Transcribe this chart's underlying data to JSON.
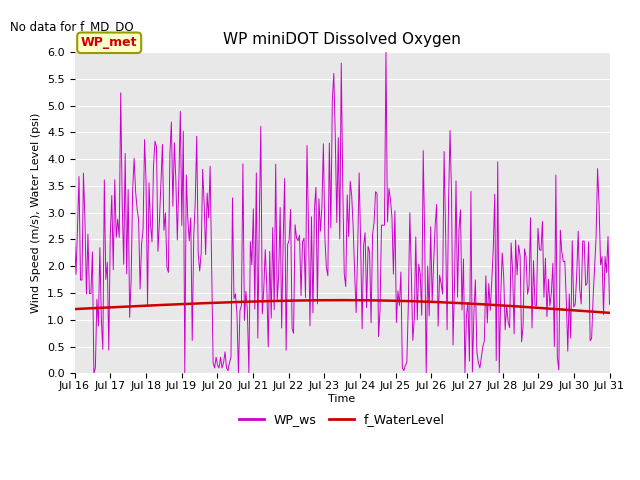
{
  "title": "WP miniDOT Dissolved Oxygen",
  "top_left_text": "No data for f_MD_DO",
  "ylabel": "Wind Speed (m/s), Water Level (psi)",
  "xlabel": "Time",
  "ylim": [
    0.0,
    6.0
  ],
  "x_tick_labels": [
    "Jul 16",
    "Jul 17",
    "Jul 18",
    "Jul 19",
    "Jul 20",
    "Jul 21",
    "Jul 22",
    "Jul 23",
    "Jul 24",
    "Jul 25",
    "Jul 26",
    "Jul 27",
    "Jul 28",
    "Jul 29",
    "Jul 30",
    "Jul 31"
  ],
  "legend_labels": [
    "WP_ws",
    "f_WaterLevel"
  ],
  "legend_colors": [
    "#cc00cc",
    "#cc0000"
  ],
  "wp_met_label": "WP_met",
  "wp_met_color": "#cc0000",
  "ws_color": "#cc00cc",
  "wl_color": "#cc0000",
  "plot_bg": "#e8e8e8",
  "title_fontsize": 11,
  "label_fontsize": 8,
  "tick_fontsize": 8
}
